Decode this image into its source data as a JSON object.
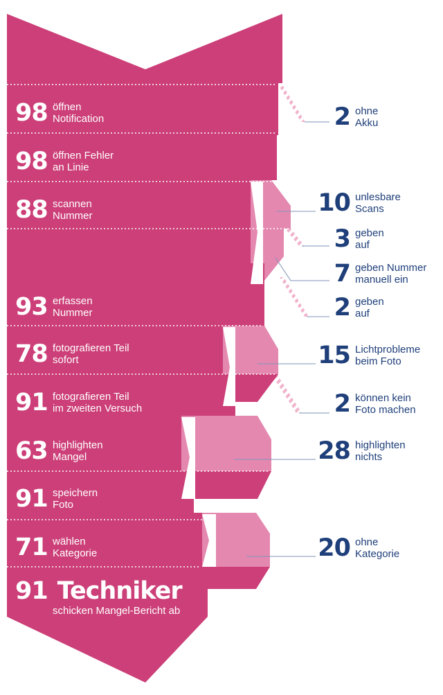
{
  "colors": {
    "main": "#cc3f78",
    "dropout": "#e488b0",
    "hatch": "#f1b2cc",
    "divider": "#ffffff",
    "text_dark": "#1f3f7a",
    "leader_line": "#7f93b7"
  },
  "stages": [
    {
      "value": "98",
      "label": "öffnen\nNotification"
    },
    {
      "value": "98",
      "label": "öffnen Fehler\nan Linie"
    },
    {
      "value": "88",
      "label": "scannen\nNummer"
    },
    {
      "value": "93",
      "label": "erfassen\nNummer"
    },
    {
      "value": "78",
      "label": "fotografieren Teil\nsofort"
    },
    {
      "value": "91",
      "label": "fotografieren Teil\nim zweiten Versuch"
    },
    {
      "value": "63",
      "label": "highlighten\nMangel"
    },
    {
      "value": "91",
      "label": "speichern\nFoto"
    },
    {
      "value": "71",
      "label": "wählen\nKategorie"
    }
  ],
  "final": {
    "value": "91",
    "word": "Techniker",
    "label": "schicken Mangel-Bericht ab"
  },
  "dropouts": [
    {
      "value": "2",
      "label": "ohne\nAkku"
    },
    {
      "value": "10",
      "label": "unlesbare\nScans"
    },
    {
      "value": "3",
      "label": "geben\nauf"
    },
    {
      "value": "7",
      "label": "geben Nummer\nmanuell ein"
    },
    {
      "value": "2",
      "label": "geben\nauf"
    },
    {
      "value": "15",
      "label": "Lichtprobleme\nbeim Foto"
    },
    {
      "value": "2",
      "label": "können kein\nFoto machen"
    },
    {
      "value": "28",
      "label": "highlighten\nnichts"
    },
    {
      "value": "20",
      "label": "ohne\nKategorie"
    }
  ]
}
